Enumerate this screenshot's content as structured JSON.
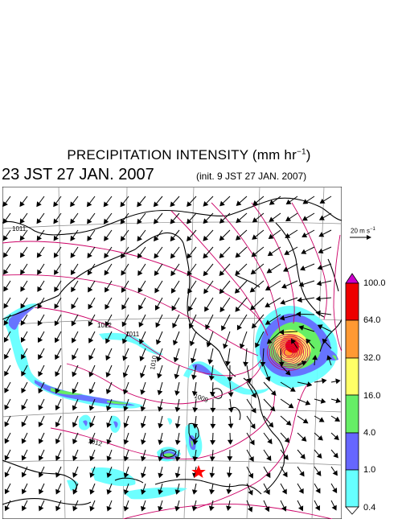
{
  "title": {
    "main": "PRECIPITATION INTENSITY (mm hr",
    "exp": "−1",
    "close": ")"
  },
  "subtitle": "23 JST 27 JAN. 2007",
  "init": "(init. 9 JST 27 JAN. 2007)",
  "reference_vector": {
    "text": "20 m s",
    "exp": "−1"
  },
  "colorbar": {
    "ticks": [
      "100.0",
      "64.0",
      "32.0",
      "16.0",
      "4.0",
      "1.0",
      "0.4"
    ],
    "colors": [
      "#cc00cc",
      "#ee0000",
      "#ff9933",
      "#ffff66",
      "#66ee66",
      "#6666ff",
      "#66ffff",
      "#ffffff"
    ]
  },
  "contours": {
    "labels": [
      "1012",
      "1011",
      "1010",
      "1009",
      "1012",
      "1011"
    ],
    "color": "#cc0066"
  },
  "marker": {
    "icon": "star-icon",
    "color": "#ff0000"
  },
  "map_colors": {
    "coast": "#000000",
    "grid": "#888888"
  }
}
